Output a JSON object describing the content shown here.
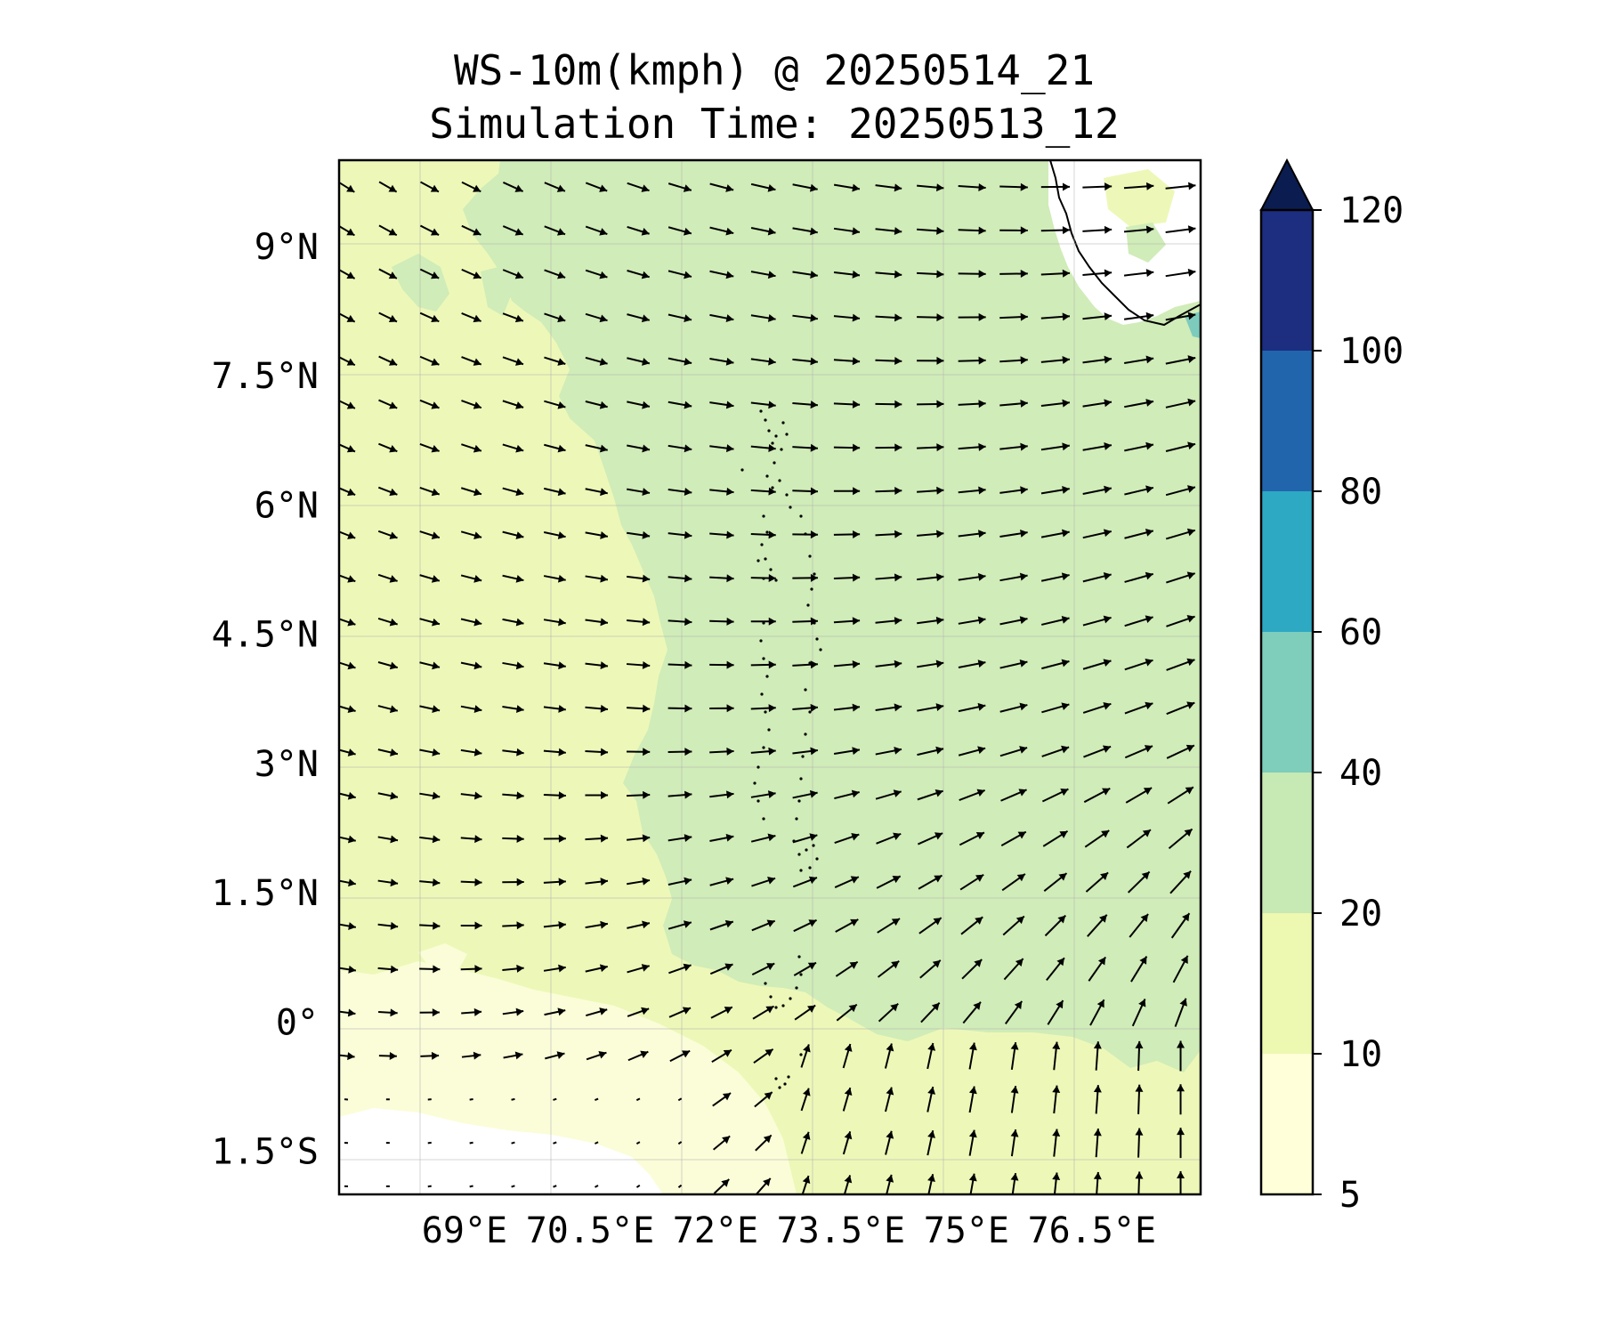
{
  "title": {
    "line1": "WS-10m(kmph) @ 20250514_21",
    "line2": "Simulation Time: 20250513_12"
  },
  "map": {
    "lon_range": [
      67.5,
      77.8
    ],
    "lat_range": [
      -2.0,
      10.0
    ],
    "lon_ticks": [
      69,
      70.5,
      72,
      73.5,
      75,
      76.5
    ],
    "lon_tick_labels": [
      "69°E",
      "70.5°E",
      "72°E",
      "73.5°E",
      "75°E",
      "76.5°E"
    ],
    "lat_ticks": [
      9,
      7.5,
      6,
      4.5,
      3,
      1.5,
      0,
      -1.5
    ],
    "lat_tick_labels": [
      "9°N",
      "7.5°N",
      "6°N",
      "4.5°N",
      "3°N",
      "1.5°N",
      "0°",
      "1.5°S"
    ],
    "gridlines": true,
    "field_colors": {
      "background_10_20": "#edf8b8",
      "zone_20_40": "#d0ecb8",
      "zone_5_10": "#fbfdd8",
      "calm_below_5": "#ffffff",
      "zone_40_60": "#7dcbbd",
      "coast": "#000000"
    },
    "wind_vectors": "black arrows indicating wind direction (northwesterly in north-west, westerly in centre, south-westerly / southerly in south-east)"
  },
  "colorbar": {
    "levels": [
      5,
      10,
      20,
      40,
      60,
      80,
      100,
      120
    ],
    "labels": [
      "5",
      "10",
      "20",
      "40",
      "60",
      "80",
      "100",
      "120"
    ],
    "colors": [
      "#ffffd9",
      "#edf8b1",
      "#c7e9b4",
      "#7fcdbb",
      "#2ea9c4",
      "#2166ac",
      "#1d2d80"
    ],
    "extend_color": "#0b1d50",
    "extend": "max"
  }
}
